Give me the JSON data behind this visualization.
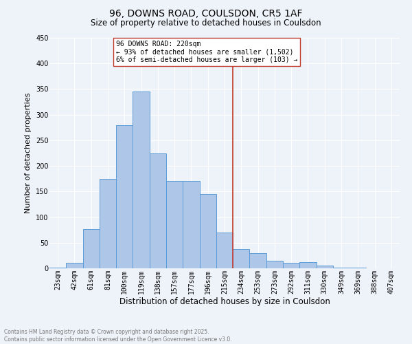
{
  "title": "96, DOWNS ROAD, COULSDON, CR5 1AF",
  "subtitle": "Size of property relative to detached houses in Coulsdon",
  "xlabel": "Distribution of detached houses by size in Coulsdon",
  "ylabel": "Number of detached properties",
  "bar_color": "#aec6e8",
  "bar_edge_color": "#5b9bd5",
  "background_color": "#eef3fa",
  "grid_color": "#ffffff",
  "categories": [
    "23sqm",
    "42sqm",
    "61sqm",
    "81sqm",
    "100sqm",
    "119sqm",
    "138sqm",
    "157sqm",
    "177sqm",
    "196sqm",
    "215sqm",
    "234sqm",
    "253sqm",
    "273sqm",
    "292sqm",
    "311sqm",
    "330sqm",
    "349sqm",
    "369sqm",
    "388sqm",
    "407sqm"
  ],
  "values": [
    2,
    11,
    76,
    175,
    280,
    345,
    225,
    170,
    170,
    145,
    70,
    38,
    30,
    15,
    11,
    12,
    6,
    1,
    1,
    0,
    0
  ],
  "ylim": [
    0,
    450
  ],
  "yticks": [
    0,
    50,
    100,
    150,
    200,
    250,
    300,
    350,
    400,
    450
  ],
  "vline_x": 10.5,
  "vline_color": "#c0392b",
  "annotation_text": "96 DOWNS ROAD: 220sqm\n← 93% of detached houses are smaller (1,502)\n6% of semi-detached houses are larger (103) →",
  "annotation_box_color": "#ffffff",
  "annotation_box_edge": "#c0392b",
  "footer": "Contains HM Land Registry data © Crown copyright and database right 2025.\nContains public sector information licensed under the Open Government Licence v3.0.",
  "footer_color": "#777777",
  "title_fontsize": 10,
  "subtitle_fontsize": 8.5,
  "ylabel_fontsize": 8,
  "xlabel_fontsize": 8.5,
  "tick_fontsize": 7,
  "footer_fontsize": 5.5,
  "annot_fontsize": 7
}
